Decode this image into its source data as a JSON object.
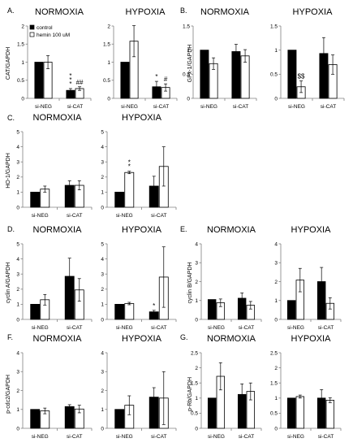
{
  "legend": {
    "control": "control",
    "hemin": "hemin 100 uM"
  },
  "colors": {
    "control": "#000000",
    "hemin": "#ffffff",
    "axis": "#808080"
  },
  "charts": [
    {
      "panel": "A.",
      "ylabel": "CAT/GAPDH",
      "subplots": [
        {
          "title": "NORMOXIA",
          "ylim": [
            0,
            2
          ],
          "yticks": [
            "0",
            "0.5",
            "1",
            "1.5",
            "2"
          ],
          "categories": [
            "si-NEG",
            "si-CAT"
          ],
          "series": [
            {
              "name": "control",
              "values": [
                1.0,
                0.22
              ],
              "errors": [
                0.0,
                0.05
              ]
            },
            {
              "name": "hemin 100 uM",
              "values": [
                1.0,
                0.27
              ],
              "errors": [
                0.18,
                0.05
              ]
            }
          ],
          "annotations": [
            {
              "cat": 1,
              "series": 0,
              "text": "***"
            },
            {
              "cat": 1,
              "series": 1,
              "text": "##"
            }
          ]
        },
        {
          "title": "HYPOXIA",
          "ylim": [
            0,
            2
          ],
          "yticks": [
            "0",
            "0.5",
            "1",
            "1.5",
            "2"
          ],
          "categories": [
            "si-NEG",
            "si-CAT"
          ],
          "series": [
            {
              "name": "control",
              "values": [
                1.0,
                0.32
              ],
              "errors": [
                0.0,
                0.15
              ]
            },
            {
              "name": "hemin 100 uM",
              "values": [
                1.58,
                0.3
              ],
              "errors": [
                0.43,
                0.1
              ]
            }
          ],
          "annotations": [
            {
              "cat": 1,
              "series": 0,
              "text": "*"
            },
            {
              "cat": 1,
              "series": 1,
              "text": "#"
            }
          ]
        }
      ]
    },
    {
      "panel": "B.",
      "ylabel": "GPx-1/GAPDH",
      "subplots": [
        {
          "title": "NORMOXIA",
          "ylim": [
            0,
            1.5
          ],
          "yticks": [
            "0",
            "0.5",
            "1",
            "1.5"
          ],
          "categories": [
            "si-NEG",
            "si-CAT"
          ],
          "series": [
            {
              "name": "control",
              "values": [
                1.0,
                0.97
              ],
              "errors": [
                0.0,
                0.15
              ]
            },
            {
              "name": "hemin 100 uM",
              "values": [
                0.72,
                0.88
              ],
              "errors": [
                0.12,
                0.13
              ]
            }
          ],
          "annotations": []
        },
        {
          "title": "HYPOXIA",
          "ylim": [
            0,
            1.5
          ],
          "yticks": [
            "0",
            "0.5",
            "1",
            "1.5"
          ],
          "categories": [
            "si-NEG",
            "si-CAT"
          ],
          "series": [
            {
              "name": "control",
              "values": [
                1.0,
                0.93
              ],
              "errors": [
                0.0,
                0.33
              ]
            },
            {
              "name": "hemin 100 uM",
              "values": [
                0.24,
                0.7
              ],
              "errors": [
                0.12,
                0.2
              ]
            }
          ],
          "annotations": [
            {
              "cat": 0,
              "series": 1,
              "text": "$$"
            }
          ]
        }
      ]
    },
    {
      "panel": "C.",
      "ylabel": "HO-1/GAPDH",
      "subplots": [
        {
          "title": "NORMOXIA",
          "ylim": [
            0,
            5
          ],
          "yticks": [
            "0",
            "1",
            "2",
            "3",
            "4",
            "5"
          ],
          "categories": [
            "si-NEG",
            "si-CAT"
          ],
          "series": [
            {
              "name": "control",
              "values": [
                1.0,
                1.45
              ],
              "errors": [
                0.0,
                0.3
              ]
            },
            {
              "name": "hemin 100 uM",
              "values": [
                1.2,
                1.45
              ],
              "errors": [
                0.2,
                0.3
              ]
            }
          ],
          "annotations": []
        },
        {
          "title": "HYPOXIA",
          "ylim": [
            0,
            5
          ],
          "yticks": [
            "0",
            "1",
            "2",
            "3",
            "4",
            "5"
          ],
          "categories": [
            "si-NEG",
            "si-CAT"
          ],
          "series": [
            {
              "name": "control",
              "values": [
                1.0,
                1.4
              ],
              "errors": [
                0.0,
                0.65
              ]
            },
            {
              "name": "hemin 100 uM",
              "values": [
                2.3,
                2.7
              ],
              "errors": [
                0.08,
                1.3
              ]
            }
          ],
          "annotations": [
            {
              "cat": 0,
              "series": 1,
              "text": "**"
            }
          ]
        }
      ]
    },
    {
      "panel": "D.",
      "ylabel": "cyclin A/GAPDH",
      "subplots": [
        {
          "title": "NORMOXIA",
          "ylim": [
            0,
            5
          ],
          "yticks": [
            "0",
            "1",
            "2",
            "3",
            "4",
            "5"
          ],
          "categories": [
            "si-NEG",
            "si-CAT"
          ],
          "series": [
            {
              "name": "control",
              "values": [
                1.0,
                2.85
              ],
              "errors": [
                0.0,
                1.2
              ]
            },
            {
              "name": "hemin 100 uM",
              "values": [
                1.3,
                1.95
              ],
              "errors": [
                0.35,
                0.75
              ]
            }
          ],
          "annotations": []
        },
        {
          "title": "HYPOXIA",
          "ylim": [
            0,
            5
          ],
          "yticks": [
            "0",
            "1",
            "2",
            "3",
            "4",
            "5"
          ],
          "categories": [
            "si-NEG",
            "si-CAT"
          ],
          "series": [
            {
              "name": "control",
              "values": [
                1.0,
                0.5
              ],
              "errors": [
                0.0,
                0.1
              ]
            },
            {
              "name": "hemin 100 uM",
              "values": [
                1.05,
                2.8
              ],
              "errors": [
                0.08,
                2.0
              ]
            }
          ],
          "annotations": [
            {
              "cat": 1,
              "series": 0,
              "text": "*"
            }
          ]
        }
      ]
    },
    {
      "panel": "E.",
      "ylabel": "cyclin B/GAPDH",
      "subplots": [
        {
          "title": "NORMOXIA",
          "ylim": [
            0,
            4
          ],
          "yticks": [
            "0",
            "1",
            "2",
            "3",
            "4"
          ],
          "categories": [
            "si-NEG",
            "si-CAT"
          ],
          "series": [
            {
              "name": "control",
              "values": [
                1.05,
                1.12
              ],
              "errors": [
                0.0,
                0.28
              ]
            },
            {
              "name": "hemin 100 uM",
              "values": [
                0.88,
                0.75
              ],
              "errors": [
                0.2,
                0.2
              ]
            }
          ],
          "annotations": []
        },
        {
          "title": "HYPOXIA",
          "ylim": [
            0,
            4
          ],
          "yticks": [
            "0",
            "1",
            "2",
            "3",
            "4"
          ],
          "categories": [
            "si-NEG",
            "si-CAT"
          ],
          "series": [
            {
              "name": "control",
              "values": [
                1.0,
                2.0
              ],
              "errors": [
                0.0,
                0.75
              ]
            },
            {
              "name": "hemin 100 uM",
              "values": [
                2.08,
                0.85
              ],
              "errors": [
                0.62,
                0.3
              ]
            }
          ],
          "annotations": []
        }
      ]
    },
    {
      "panel": "F.",
      "ylabel": "p-cdc2/GAPDH",
      "subplots": [
        {
          "title": "NORMOXIA",
          "ylim": [
            0,
            4
          ],
          "yticks": [
            "0",
            "1",
            "2",
            "3",
            "4"
          ],
          "categories": [
            "si-NEG",
            "si-CAT"
          ],
          "series": [
            {
              "name": "control",
              "values": [
                1.0,
                1.15
              ],
              "errors": [
                0.0,
                0.1
              ]
            },
            {
              "name": "hemin 100 uM",
              "values": [
                0.92,
                1.02
              ],
              "errors": [
                0.15,
                0.2
              ]
            }
          ],
          "annotations": []
        },
        {
          "title": "HYPOXIA",
          "ylim": [
            0,
            4
          ],
          "yticks": [
            "0",
            "1",
            "2",
            "3",
            "4"
          ],
          "categories": [
            "si-NEG",
            "si-CAT"
          ],
          "series": [
            {
              "name": "control",
              "values": [
                1.0,
                1.65
              ],
              "errors": [
                0.0,
                0.5
              ]
            },
            {
              "name": "hemin 100 uM",
              "values": [
                1.22,
                1.6
              ],
              "errors": [
                0.5,
                1.4
              ]
            }
          ],
          "annotations": []
        }
      ]
    },
    {
      "panel": "G.",
      "ylabel": "p-Rb/GAPDH",
      "subplots": [
        {
          "title": "NORMOXIA",
          "ylim": [
            0,
            2.5
          ],
          "yticks": [
            "0",
            "0.5",
            "1",
            "1.5",
            "2",
            "2.5"
          ],
          "categories": [
            "si-NEG",
            "si-CAT"
          ],
          "series": [
            {
              "name": "control",
              "values": [
                1.0,
                1.12
              ],
              "errors": [
                0.0,
                0.35
              ]
            },
            {
              "name": "hemin 100 uM",
              "values": [
                1.72,
                1.22
              ],
              "errors": [
                0.45,
                0.28
              ]
            }
          ],
          "annotations": []
        },
        {
          "title": "HYPOXIA",
          "ylim": [
            0,
            2.5
          ],
          "yticks": [
            "0",
            "0.5",
            "1",
            "1.5",
            "2",
            "2.5"
          ],
          "categories": [
            "si-NEG",
            "si-CAT"
          ],
          "series": [
            {
              "name": "control",
              "values": [
                1.0,
                1.0
              ],
              "errors": [
                0.0,
                0.28
              ]
            },
            {
              "name": "hemin 100 uM",
              "values": [
                1.05,
                0.93
              ],
              "errors": [
                0.05,
                0.08
              ]
            }
          ],
          "annotations": []
        }
      ]
    }
  ]
}
